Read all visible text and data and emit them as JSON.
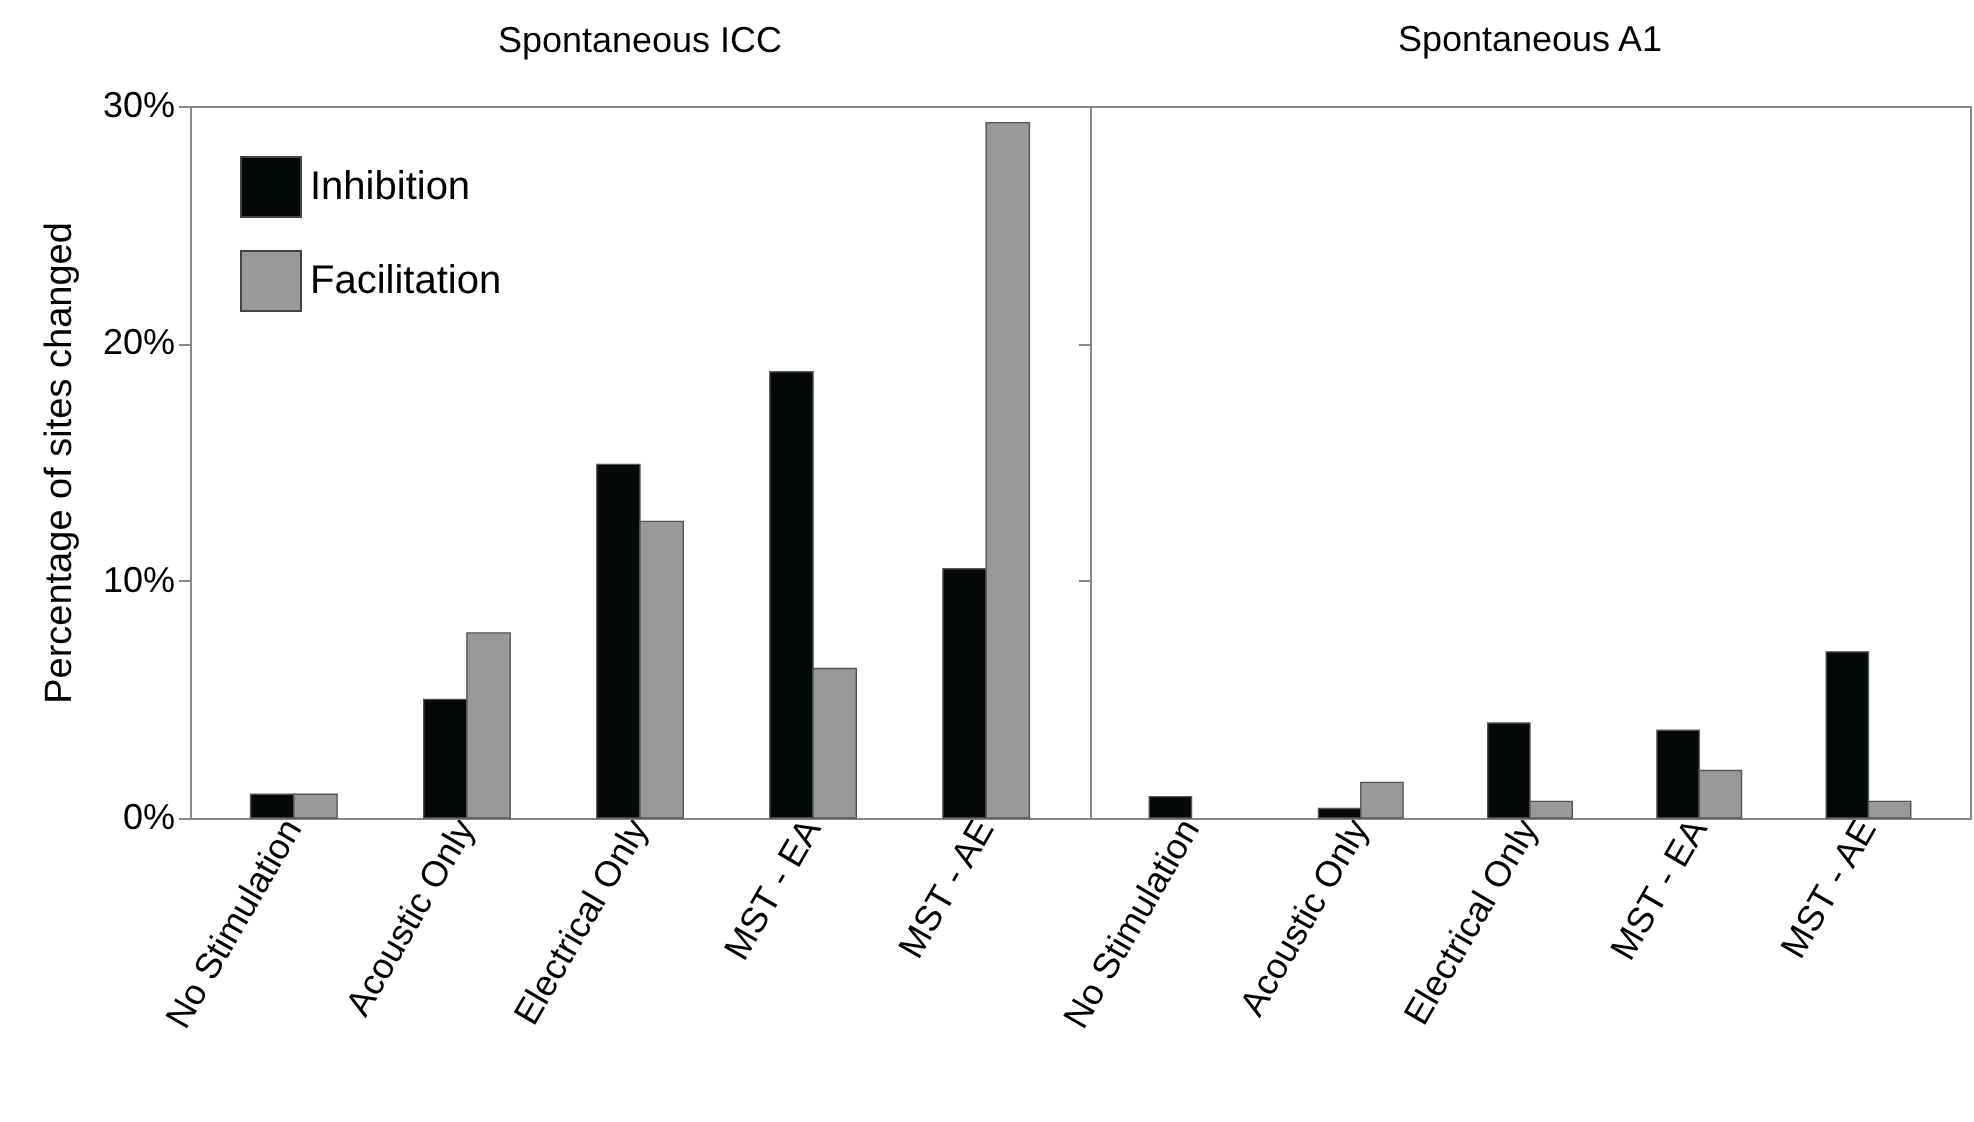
{
  "chart_data": [
    {
      "type": "bar",
      "title": "Spontaneous ICC",
      "ylabel": "Percentage of sites changed",
      "categories": [
        "No Stimulation",
        "Acoustic Only",
        "Electrical Only",
        "MST - EA",
        "MST - AE"
      ],
      "series": [
        {
          "name": "Inhibition",
          "color": "#050808",
          "values": [
            1.0,
            5.0,
            14.9,
            18.8,
            10.5
          ]
        },
        {
          "name": "Facilitation",
          "color": "#999999",
          "values": [
            1.0,
            7.8,
            12.5,
            6.3,
            29.3
          ]
        }
      ],
      "ylim": [
        0,
        30
      ],
      "yticks": [
        {
          "value": 0,
          "label": "0%"
        },
        {
          "value": 10,
          "label": "10%"
        },
        {
          "value": 20,
          "label": "20%"
        },
        {
          "value": 30,
          "label": "30%"
        }
      ],
      "legend": "top left"
    },
    {
      "type": "bar",
      "title": "Spontaneous A1",
      "categories": [
        "No Stimulation",
        "Acoustic Only",
        "Electrical Only",
        "MST - EA",
        "MST - AE"
      ],
      "series": [
        {
          "color": "#050808",
          "values": [
            0.9,
            0.4,
            4.0,
            3.7,
            7.0
          ]
        },
        {
          "color": "#999999",
          "values": [
            null,
            1.5,
            0.7,
            2.0,
            0.7
          ]
        }
      ],
      "ylim": [
        0,
        30
      ],
      "yticks": [
        {
          "value": 0,
          "label": null
        },
        {
          "value": 10,
          "label": null
        },
        {
          "value": 20,
          "label": null
        },
        {
          "value": 30,
          "label": null
        }
      ],
      "tick_labels": "x"
    }
  ]
}
